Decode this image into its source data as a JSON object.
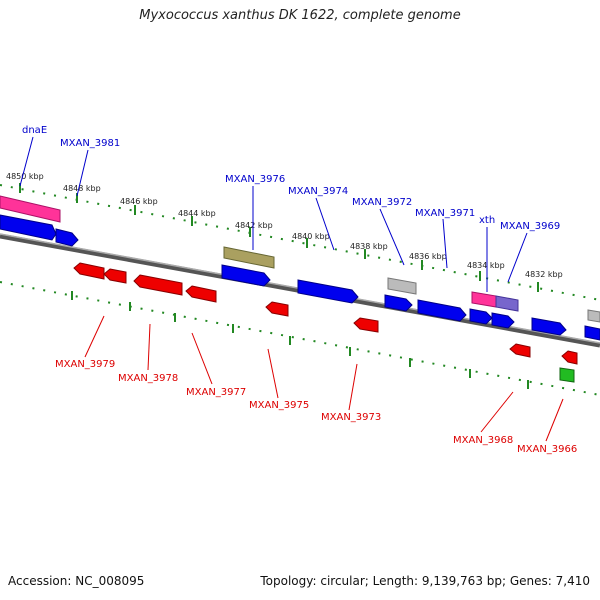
{
  "title": "Myxococcus xanthus DK 1622, complete genome",
  "footer": {
    "accession": "Accession: NC_008095",
    "info": "Topology: circular; Length: 9,139,763 bp; Genes: 7,410"
  },
  "ruler_ticks": [
    "4850 kbp",
    "4848 kbp",
    "4846 kbp",
    "4844 kbp",
    "4842 kbp",
    "4840 kbp",
    "4838 kbp",
    "4836 kbp",
    "4834 kbp",
    "4832 kbp"
  ],
  "forward_labels": [
    "dnaE",
    "MXAN_3981",
    "MXAN_3976",
    "MXAN_3974",
    "MXAN_3972",
    "MXAN_3971",
    "xth",
    "MXAN_3969"
  ],
  "reverse_labels": [
    "MXAN_3979",
    "MXAN_3978",
    "MXAN_3977",
    "MXAN_3975",
    "MXAN_3973",
    "MXAN_3968",
    "MXAN_3966"
  ],
  "colors": {
    "forward_label": "#0000cc",
    "reverse_label": "#dd0000",
    "blue_gene": "#0000ee",
    "red_gene": "#ee0000",
    "pink_gene": "#ff3399",
    "olive_gene": "#aaa060",
    "grey_gene": "#bbbbbb",
    "purple_gene": "#7766cc",
    "green_gene": "#22bb22",
    "backbone": "#888888",
    "tick": "#228822"
  }
}
